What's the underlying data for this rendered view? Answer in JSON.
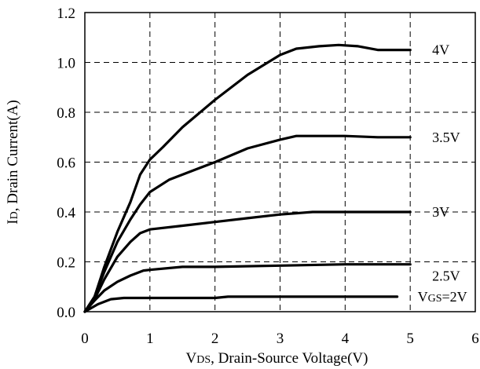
{
  "chart_data": {
    "type": "line",
    "title": "",
    "xlabel": {
      "main": "V",
      "sub": "DS",
      "rest": ", Drain-Source Voltage(V)"
    },
    "ylabel": {
      "main": "I",
      "sub": "D",
      "rest": ", Drain Current(A)"
    },
    "xlim": [
      0,
      6
    ],
    "ylim": [
      0,
      1.2
    ],
    "xticks": [
      "0",
      "1",
      "2",
      "3",
      "4",
      "5",
      "6"
    ],
    "yticks": [
      "0.0",
      "0.2",
      "0.4",
      "0.6",
      "0.8",
      "1.0",
      "1.2"
    ],
    "grid": true,
    "series": [
      {
        "name": "4V",
        "label": {
          "main": "4V"
        },
        "points": [
          [
            0,
            0
          ],
          [
            0.15,
            0.06
          ],
          [
            0.3,
            0.18
          ],
          [
            0.5,
            0.32
          ],
          [
            0.7,
            0.44
          ],
          [
            0.85,
            0.55
          ],
          [
            1.0,
            0.61
          ],
          [
            1.2,
            0.66
          ],
          [
            1.5,
            0.74
          ],
          [
            2.0,
            0.85
          ],
          [
            2.5,
            0.95
          ],
          [
            3.0,
            1.03
          ],
          [
            3.25,
            1.055
          ],
          [
            3.6,
            1.065
          ],
          [
            3.9,
            1.07
          ],
          [
            4.2,
            1.065
          ],
          [
            4.5,
            1.05
          ],
          [
            5.0,
            1.05
          ]
        ]
      },
      {
        "name": "3.5V",
        "label": {
          "main": "3.5V"
        },
        "points": [
          [
            0,
            0
          ],
          [
            0.15,
            0.06
          ],
          [
            0.3,
            0.16
          ],
          [
            0.5,
            0.28
          ],
          [
            0.7,
            0.37
          ],
          [
            0.85,
            0.43
          ],
          [
            1.0,
            0.48
          ],
          [
            1.3,
            0.53
          ],
          [
            1.7,
            0.57
          ],
          [
            2.0,
            0.6
          ],
          [
            2.5,
            0.655
          ],
          [
            3.0,
            0.69
          ],
          [
            3.25,
            0.705
          ],
          [
            3.6,
            0.705
          ],
          [
            4.0,
            0.705
          ],
          [
            4.5,
            0.7
          ],
          [
            5.0,
            0.7
          ]
        ]
      },
      {
        "name": "3V",
        "label": {
          "main": "3V"
        },
        "points": [
          [
            0,
            0
          ],
          [
            0.15,
            0.05
          ],
          [
            0.3,
            0.13
          ],
          [
            0.5,
            0.22
          ],
          [
            0.7,
            0.28
          ],
          [
            0.85,
            0.315
          ],
          [
            1.0,
            0.33
          ],
          [
            1.5,
            0.345
          ],
          [
            2.0,
            0.36
          ],
          [
            2.5,
            0.375
          ],
          [
            3.0,
            0.39
          ],
          [
            3.5,
            0.4
          ],
          [
            4.0,
            0.4
          ],
          [
            5.0,
            0.4
          ]
        ]
      },
      {
        "name": "2.5V",
        "label": {
          "main": "2.5V"
        },
        "points": [
          [
            0,
            0
          ],
          [
            0.15,
            0.045
          ],
          [
            0.3,
            0.085
          ],
          [
            0.5,
            0.12
          ],
          [
            0.7,
            0.145
          ],
          [
            0.9,
            0.165
          ],
          [
            1.0,
            0.168
          ],
          [
            1.5,
            0.18
          ],
          [
            2.0,
            0.18
          ],
          [
            3.0,
            0.185
          ],
          [
            4.0,
            0.19
          ],
          [
            5.0,
            0.19
          ]
        ]
      },
      {
        "name": "VGS=2V",
        "label": {
          "main": "V",
          "sub": "GS",
          "rest": "=2V"
        },
        "points": [
          [
            0,
            0
          ],
          [
            0.2,
            0.03
          ],
          [
            0.4,
            0.05
          ],
          [
            0.6,
            0.055
          ],
          [
            1.0,
            0.055
          ],
          [
            2.0,
            0.055
          ],
          [
            2.2,
            0.06
          ],
          [
            3.0,
            0.06
          ],
          [
            4.0,
            0.06
          ],
          [
            4.8,
            0.06
          ]
        ]
      }
    ]
  }
}
